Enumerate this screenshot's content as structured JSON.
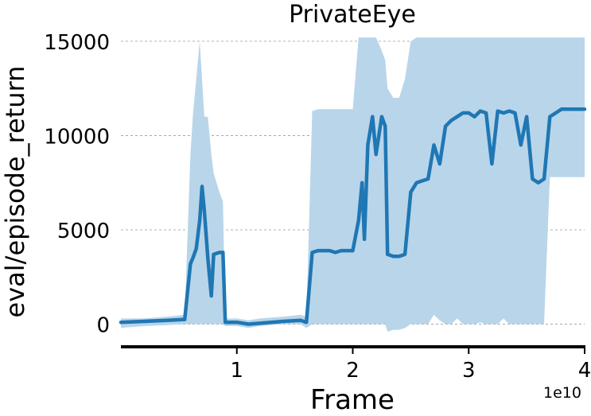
{
  "chart_data": {
    "type": "line",
    "title": "PrivateEye",
    "xlabel": "Frame",
    "ylabel": "eval/episode_return",
    "x_offset_label": "1e10",
    "xlim": [
      0,
      4
    ],
    "ylim": [
      -1200,
      15500
    ],
    "xticks": [
      1,
      2,
      3,
      4
    ],
    "yticks": [
      0,
      5000,
      10000,
      15000
    ],
    "grid": "y-dashed",
    "colors": {
      "line": "#1f77b4",
      "band": "#b9d5ea"
    },
    "series": [
      {
        "x": [
          0,
          0.2,
          0.4,
          0.55,
          0.6,
          0.62,
          0.65,
          0.68,
          0.7,
          0.72,
          0.75,
          0.78,
          0.8,
          0.85,
          0.88,
          0.9,
          1.0,
          1.1,
          1.2,
          1.4,
          1.55,
          1.6,
          1.65,
          1.7,
          1.75,
          1.8,
          1.85,
          1.9,
          1.95,
          2.0,
          2.05,
          2.08,
          2.1,
          2.13,
          2.17,
          2.2,
          2.25,
          2.28,
          2.3,
          2.35,
          2.4,
          2.45,
          2.5,
          2.55,
          2.6,
          2.65,
          2.7,
          2.75,
          2.8,
          2.85,
          2.9,
          2.95,
          3.0,
          3.05,
          3.1,
          3.15,
          3.2,
          3.25,
          3.3,
          3.35,
          3.4,
          3.45,
          3.5,
          3.55,
          3.6,
          3.65,
          3.7,
          3.8,
          3.9,
          4.0
        ],
        "mean": [
          100,
          150,
          200,
          250,
          3200,
          3500,
          4000,
          5500,
          7300,
          6000,
          3500,
          1500,
          3700,
          3800,
          3800,
          100,
          100,
          0,
          50,
          150,
          200,
          100,
          3800,
          3900,
          3900,
          3900,
          3800,
          3900,
          3900,
          3900,
          5500,
          7500,
          4500,
          9500,
          11000,
          9000,
          11000,
          10500,
          3700,
          3600,
          3600,
          3700,
          7000,
          7500,
          7600,
          7700,
          9500,
          8500,
          10500,
          10800,
          11000,
          11200,
          11200,
          11000,
          11300,
          11200,
          8500,
          11300,
          11200,
          11300,
          11200,
          9500,
          11000,
          7700,
          7500,
          7700,
          11000,
          11400,
          11400,
          11400
        ],
        "upper": [
          300,
          300,
          400,
          500,
          9000,
          11000,
          13000,
          15000,
          13000,
          11000,
          11000,
          9000,
          8000,
          7000,
          6500,
          300,
          300,
          200,
          300,
          400,
          500,
          400,
          11300,
          11400,
          11400,
          11400,
          11400,
          11400,
          11400,
          11400,
          15200,
          15200,
          15200,
          15200,
          15200,
          15200,
          14500,
          14000,
          12500,
          12000,
          12000,
          13000,
          15000,
          15200,
          15200,
          15200,
          15200,
          15200,
          15200,
          15200,
          15200,
          15200,
          15200,
          15200,
          15200,
          15200,
          15200,
          15200,
          15200,
          15200,
          15200,
          15200,
          15200,
          15200,
          15200,
          15200,
          15200,
          15200,
          15200,
          15200
        ],
        "lower": [
          -200,
          -100,
          -50,
          0,
          0,
          0,
          0,
          0,
          0,
          0,
          0,
          0,
          0,
          0,
          0,
          -100,
          -100,
          -200,
          -100,
          0,
          0,
          -200,
          0,
          0,
          0,
          0,
          0,
          0,
          0,
          0,
          0,
          0,
          0,
          0,
          0,
          0,
          0,
          0,
          -400,
          -300,
          -300,
          -200,
          0,
          0,
          0,
          0,
          500,
          200,
          0,
          0,
          300,
          0,
          0,
          0,
          100,
          0,
          0,
          0,
          300,
          0,
          0,
          0,
          0,
          0,
          0,
          0,
          7800,
          7800,
          7800,
          7800
        ]
      }
    ]
  }
}
